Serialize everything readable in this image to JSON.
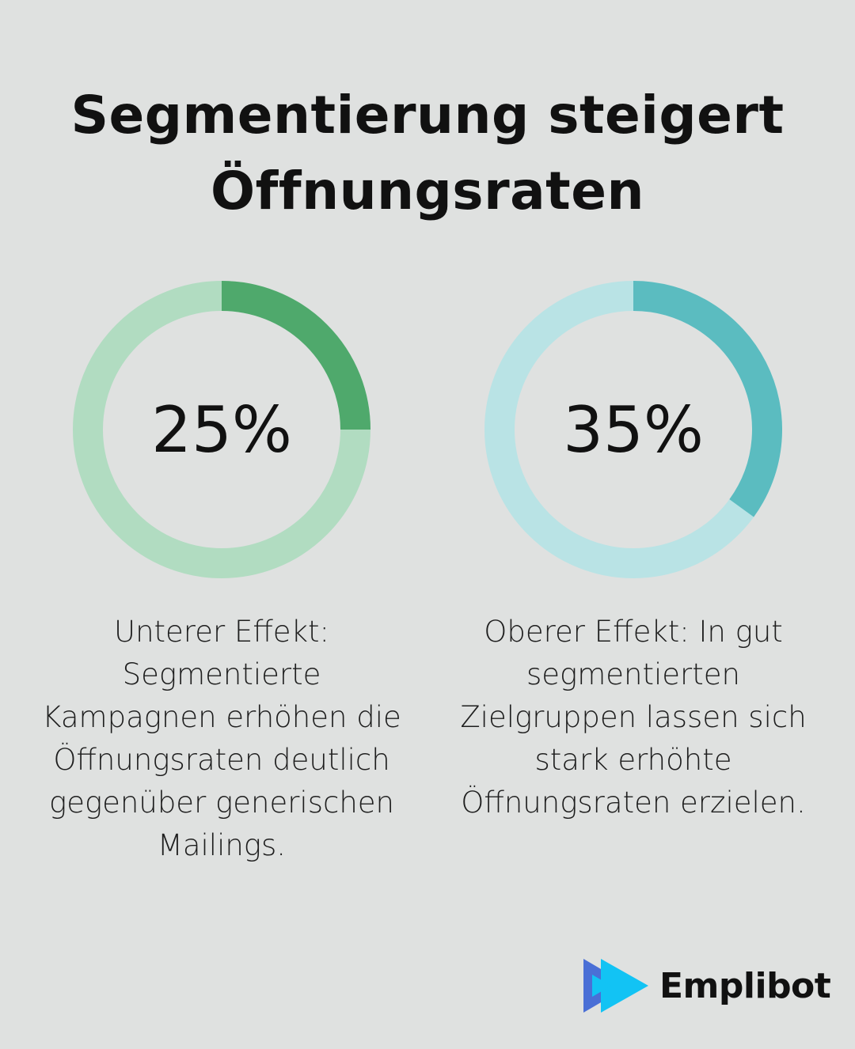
{
  "title": "Segmentierung steigert Öffnungsraten",
  "chart_data": [
    {
      "type": "pie",
      "style": "donut",
      "values": [
        25,
        75
      ],
      "label": "25%",
      "colors": {
        "filled": "#4fa96c",
        "remaining": "#b1dcc1"
      },
      "description": "Unterer Effekt: Segmentierte Kampagnen erhöhen die Öffnungsraten deutlich gegenüber generischen Mailings."
    },
    {
      "type": "pie",
      "style": "donut",
      "values": [
        35,
        65
      ],
      "label": "35%",
      "colors": {
        "filled": "#5bbcc0",
        "remaining": "#b9e3e5"
      },
      "description": "Oberer Effekt: In gut segmentierten Zielgruppen lassen sich stark erhöhte Öffnungsraten erzielen."
    }
  ],
  "logo": {
    "text": "Emplibot",
    "icon": "play-triangles-icon",
    "colors": [
      "#4a6fd6",
      "#12c3f4"
    ]
  }
}
